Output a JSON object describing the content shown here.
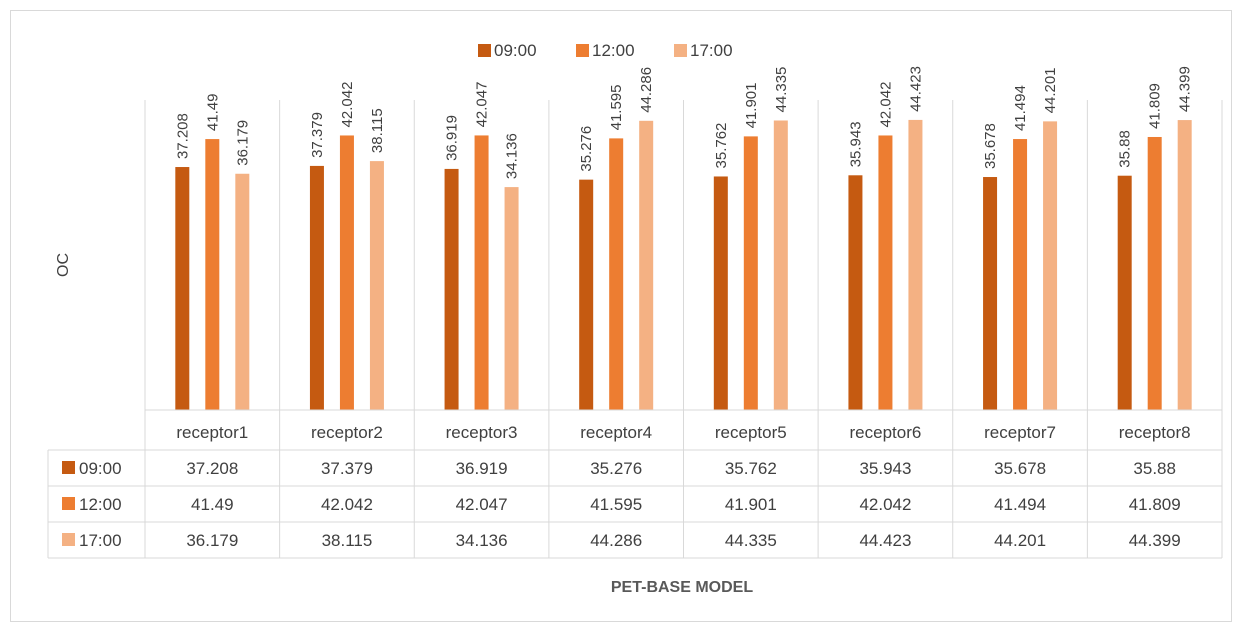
{
  "chart_data": {
    "type": "bar",
    "title": "",
    "ylabel": "OC",
    "xlabel": "PET-BASE MODEL",
    "categories": [
      "receptor1",
      "receptor2",
      "receptor3",
      "receptor4",
      "receptor5",
      "receptor6",
      "receptor7",
      "receptor8"
    ],
    "series": [
      {
        "name": "09:00",
        "color": "#c55a11",
        "values": [
          37.208,
          37.379,
          36.919,
          35.276,
          35.762,
          35.943,
          35.678,
          35.88
        ]
      },
      {
        "name": "12:00",
        "color": "#ed7d31",
        "values": [
          41.49,
          42.042,
          42.047,
          41.595,
          41.901,
          42.042,
          41.494,
          41.809
        ]
      },
      {
        "name": "17:00",
        "color": "#f4b183",
        "values": [
          36.179,
          38.115,
          34.136,
          44.286,
          44.335,
          44.423,
          44.201,
          44.399
        ]
      }
    ],
    "ylim": [
      0,
      50
    ],
    "grid": false,
    "legend_position": "top",
    "data_table": true
  }
}
